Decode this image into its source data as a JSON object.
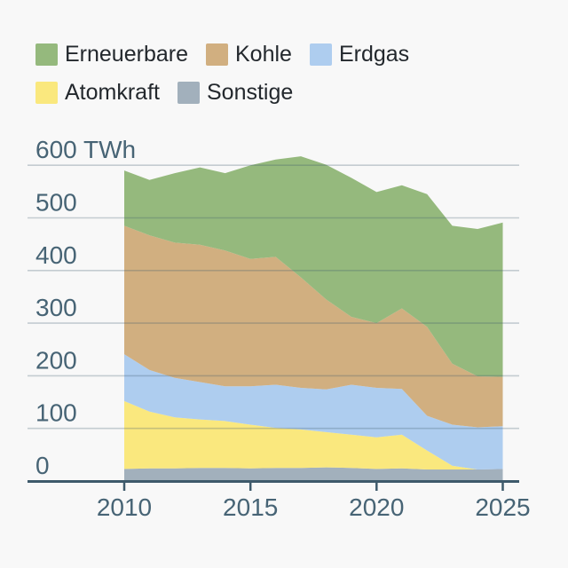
{
  "legend": {
    "items": [
      {
        "id": "erneuerbare",
        "label": "Erneuerbare",
        "color": "#95b97d"
      },
      {
        "id": "kohle",
        "label": "Kohle",
        "color": "#d1af80"
      },
      {
        "id": "erdgas",
        "label": "Erdgas",
        "color": "#aecdef"
      },
      {
        "id": "atomkraft",
        "label": "Atomkraft",
        "color": "#fae87e"
      },
      {
        "id": "sonstige",
        "label": "Sonstige",
        "color": "#a2b0bc"
      }
    ]
  },
  "chart_data": {
    "type": "area",
    "stacked": true,
    "unit": "TWh",
    "title": "",
    "xlabel": "",
    "ylabel": "TWh",
    "xlim": [
      2010,
      2025
    ],
    "ylim": [
      0,
      600
    ],
    "grid": true,
    "legend_position": "top",
    "x": [
      2010,
      2011,
      2012,
      2013,
      2014,
      2015,
      2016,
      2017,
      2018,
      2019,
      2020,
      2021,
      2022,
      2023,
      2024,
      2025
    ],
    "series": [
      {
        "name": "Sonstige",
        "color": "#a2b0bc",
        "values": [
          23,
          24,
          24,
          25,
          25,
          24,
          25,
          25,
          26,
          25,
          23,
          24,
          22,
          22,
          22,
          23
        ]
      },
      {
        "name": "Atomkraft",
        "color": "#fae87e",
        "values": [
          129,
          108,
          97,
          92,
          89,
          83,
          76,
          73,
          67,
          63,
          60,
          64,
          36,
          7,
          0,
          0
        ]
      },
      {
        "name": "Erdgas",
        "color": "#aecdef",
        "values": [
          89,
          79,
          75,
          71,
          66,
          73,
          82,
          79,
          81,
          95,
          94,
          87,
          66,
          78,
          80,
          81
        ]
      },
      {
        "name": "Kohle",
        "color": "#d1af80",
        "values": [
          244,
          256,
          257,
          261,
          258,
          242,
          243,
          210,
          171,
          129,
          123,
          153,
          169,
          116,
          97,
          94
        ]
      },
      {
        "name": "Erneuerbare",
        "color": "#95b97d",
        "values": [
          105,
          105,
          132,
          147,
          147,
          178,
          185,
          230,
          256,
          264,
          249,
          234,
          252,
          262,
          280,
          293
        ]
      }
    ],
    "stack_order": "bottom-to-top",
    "y_ticks": [
      {
        "value": 600,
        "label": "600 TWh"
      },
      {
        "value": 500,
        "label": "500"
      },
      {
        "value": 400,
        "label": "400"
      },
      {
        "value": 300,
        "label": "300"
      },
      {
        "value": 200,
        "label": "200"
      },
      {
        "value": 100,
        "label": "100"
      },
      {
        "value": 0,
        "label": "0"
      }
    ],
    "x_ticks": [
      {
        "value": 2010,
        "label": "2010"
      },
      {
        "value": 2015,
        "label": "2015"
      },
      {
        "value": 2020,
        "label": "2020"
      },
      {
        "value": 2025,
        "label": "2025"
      }
    ]
  },
  "colors": {
    "background": "#f8f8f8",
    "axis": "#3e5a6b",
    "axis_text": "#476475",
    "legend_text": "#23282d",
    "gridline": "rgba(62,90,107,0.28)"
  }
}
